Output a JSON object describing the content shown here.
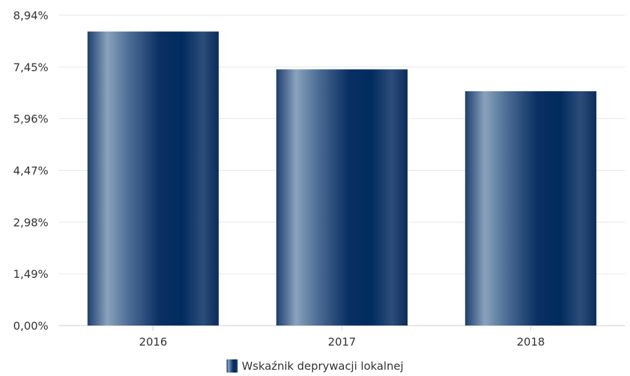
{
  "chart_data": {
    "type": "bar",
    "categories": [
      "2016",
      "2017",
      "2018"
    ],
    "series": [
      {
        "name": "Wskaźnik deprywacji lokalnej",
        "values": [
          8.47,
          7.38,
          6.75
        ]
      }
    ],
    "ylim": [
      0,
      8.94
    ],
    "yticks": [
      0,
      1.49,
      2.98,
      4.47,
      5.96,
      7.45,
      8.94
    ],
    "ytick_labels": [
      "0,00%",
      "1,49%",
      "2,98%",
      "4,47%",
      "5,96%",
      "7,45%",
      "8,94%"
    ],
    "title": "",
    "xlabel": "",
    "ylabel": "",
    "grid": true,
    "legend_position": "bottom-center",
    "colors": {
      "bar_dark": "#002b5e",
      "bar_light": "#8aa2bd",
      "grid": "#e6e6e6",
      "axis": "#cccccc"
    }
  }
}
